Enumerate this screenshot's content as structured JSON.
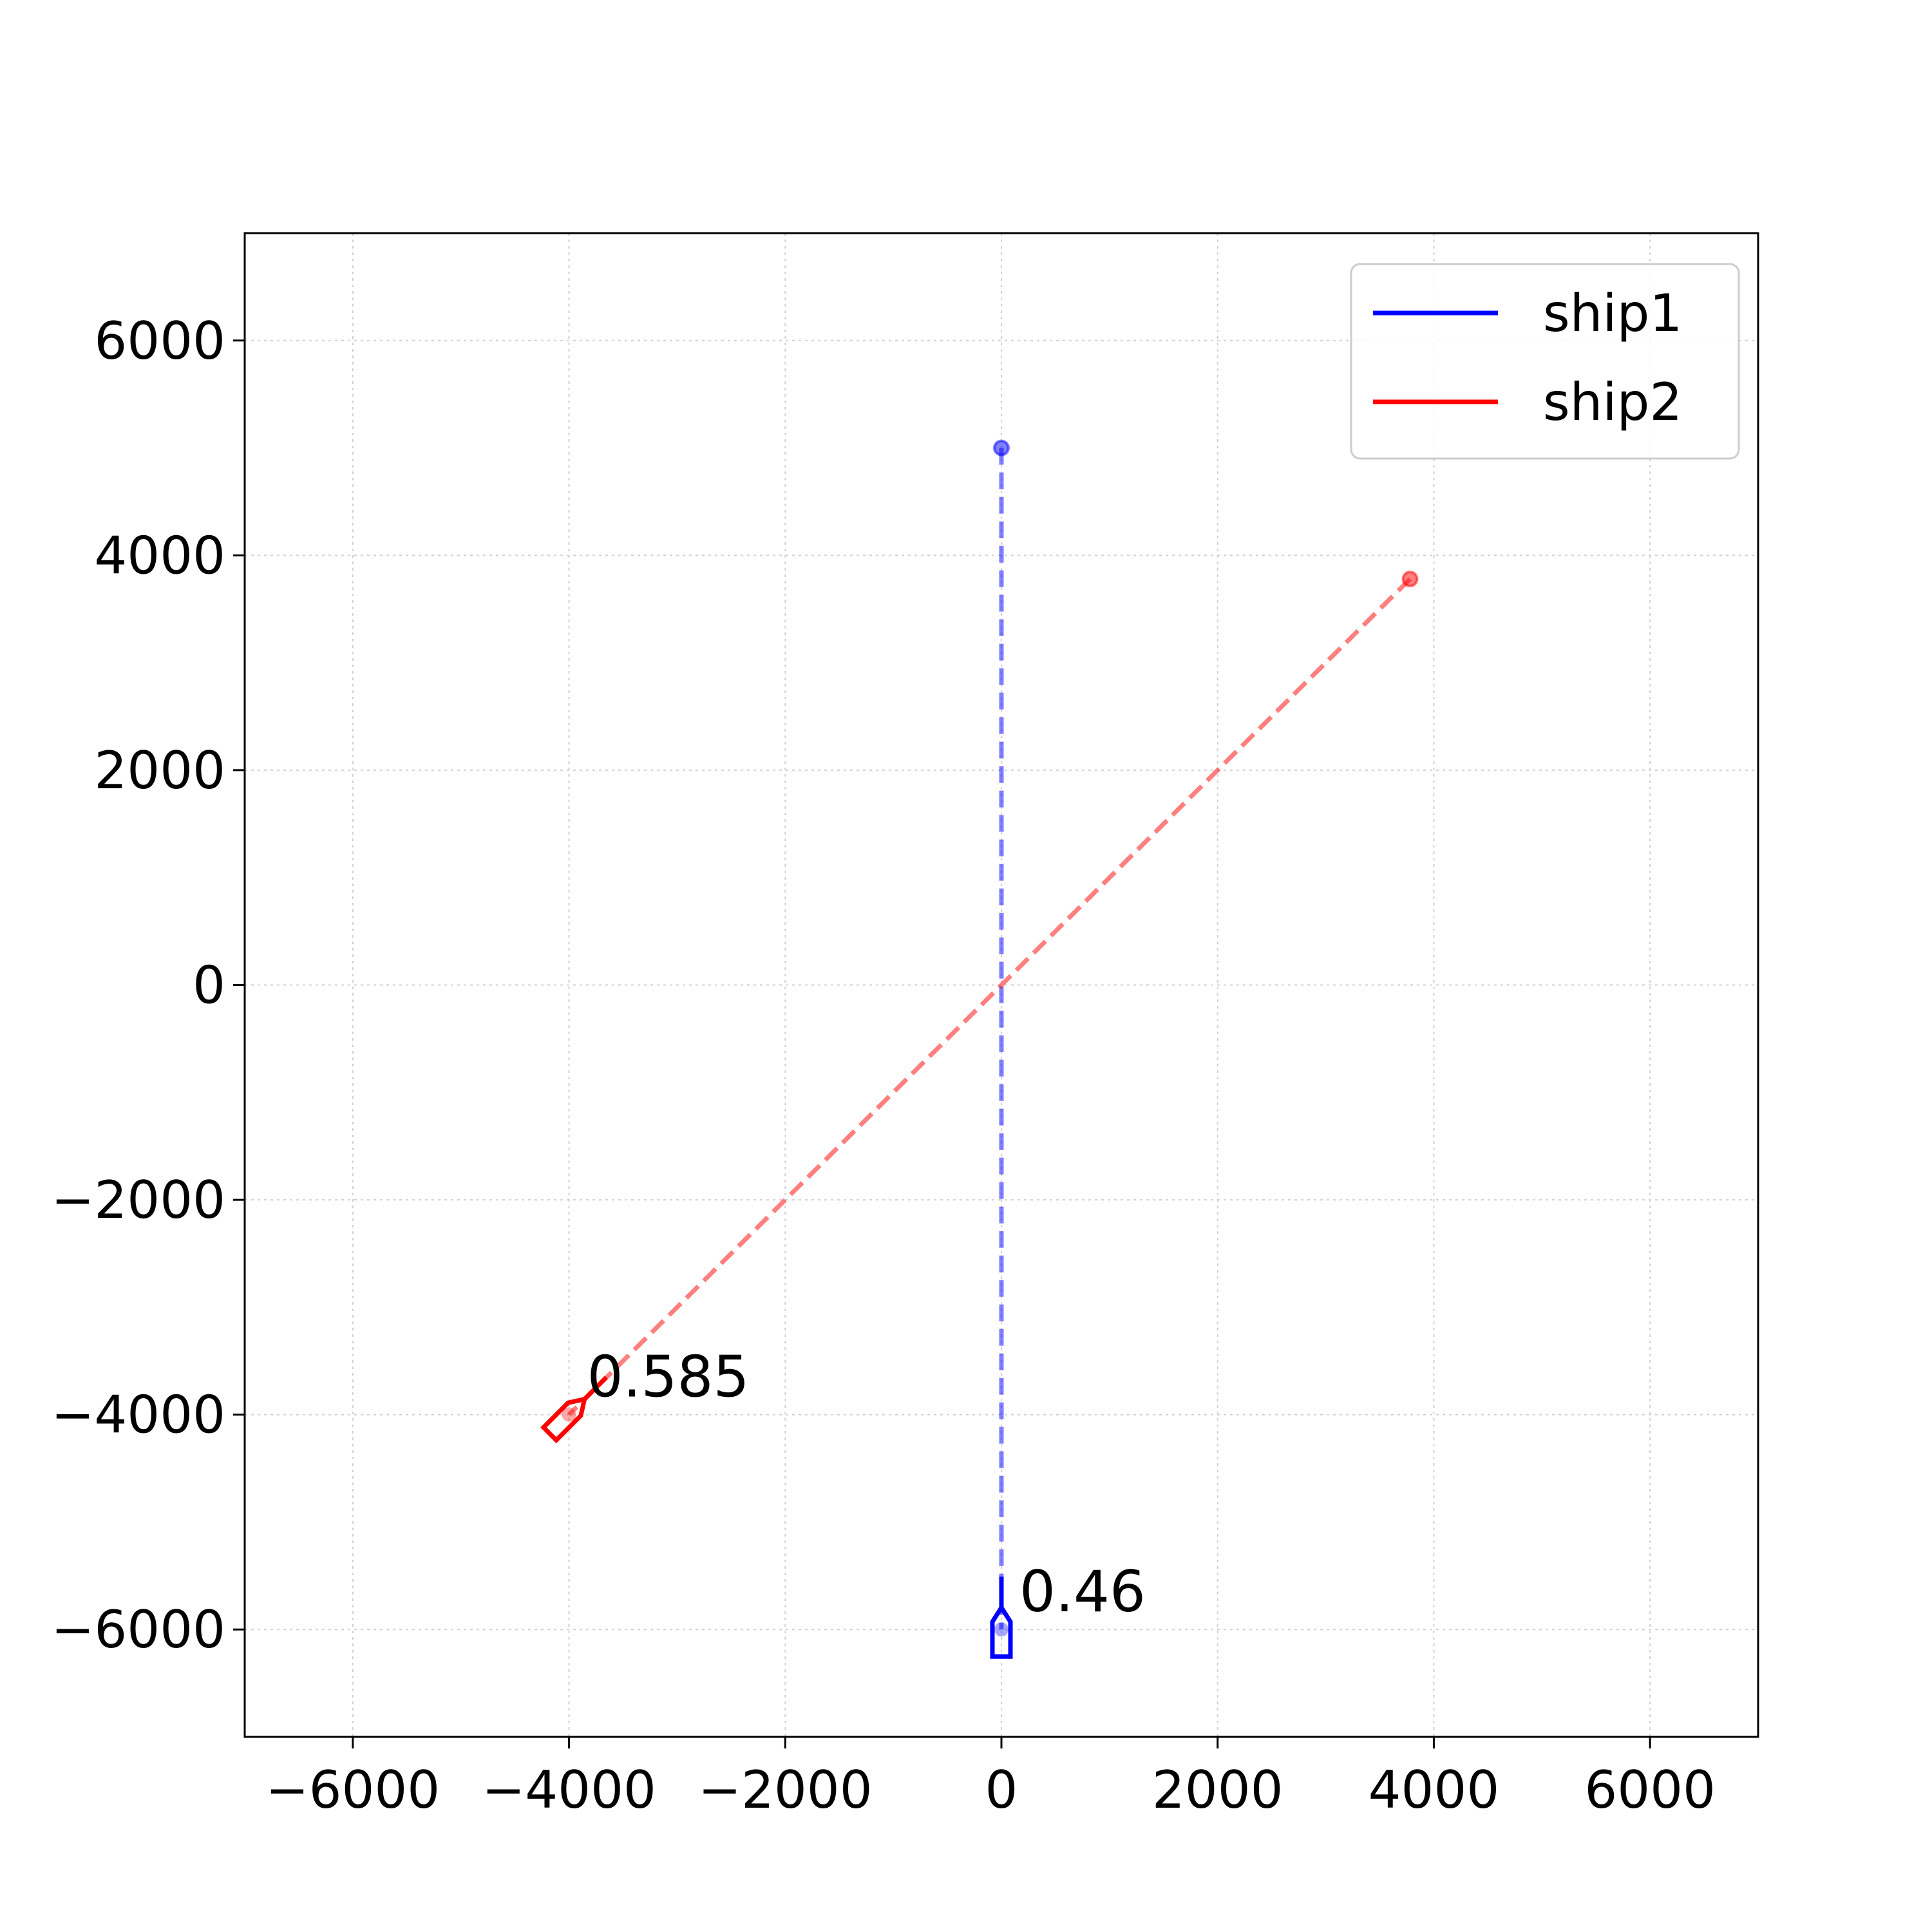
{
  "chart_data": {
    "type": "line",
    "xlim": [
      -7000,
      7000
    ],
    "ylim": [
      -7000,
      7000
    ],
    "xticks": [
      -6000,
      -4000,
      -2000,
      0,
      2000,
      4000,
      6000
    ],
    "yticks": [
      -6000,
      -4000,
      -2000,
      0,
      2000,
      4000,
      6000
    ],
    "xtick_labels": [
      "−6000",
      "−4000",
      "−2000",
      "0",
      "2000",
      "4000",
      "6000"
    ],
    "ytick_labels": [
      "−6000",
      "−4000",
      "−2000",
      "0",
      "2000",
      "4000",
      "6000"
    ],
    "grid": true,
    "legend_position": "top-right",
    "series": [
      {
        "name": "ship1",
        "color": "#0000ff",
        "path": [
          [
            0,
            5000
          ],
          [
            0,
            -6000
          ]
        ],
        "start": [
          0,
          5000
        ],
        "ship_position": [
          0,
          -6000
        ],
        "heading_deg": 0,
        "annotation": "0.46"
      },
      {
        "name": "ship2",
        "color": "#ff0000",
        "path": [
          [
            3780,
            3780
          ],
          [
            -4000,
            -4000
          ]
        ],
        "start": [
          3780,
          3780
        ],
        "ship_position": [
          -4000,
          -4000
        ],
        "heading_deg": 45,
        "annotation": "0.585"
      }
    ]
  }
}
